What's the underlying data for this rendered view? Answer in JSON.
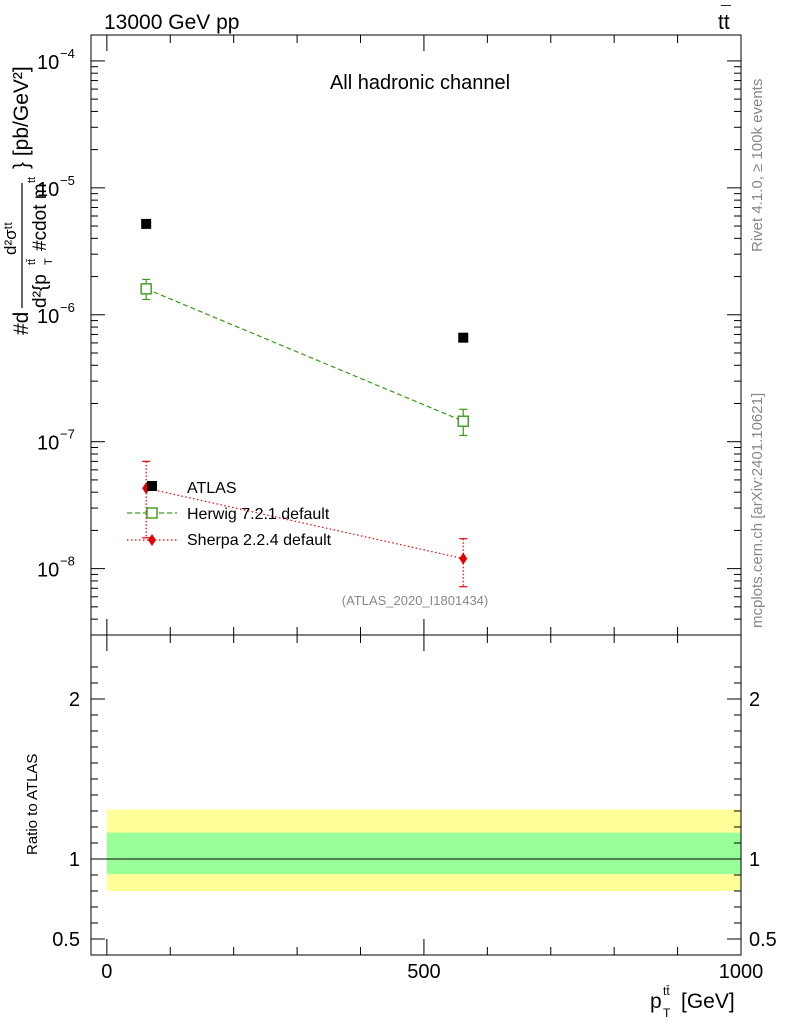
{
  "header": {
    "left": "13000 GeV pp",
    "right_main": "tt",
    "right_bar": "¯"
  },
  "side_labels": {
    "rivet": "Rivet 4.1.0, ≥ 100k events",
    "mcplots": "mcplots.cern.ch [arXiv:2401.10621]"
  },
  "chart_data": [
    {
      "type": "scatter",
      "title": "All hadronic channel",
      "watermark": "(ATLAS_2020_I1801434)",
      "xlabel": "p_T^{tt̄} [GeV]",
      "xlabel_parts": {
        "p": "p",
        "sub": "T",
        "sup": "tt̄",
        "unit": "[GeV]"
      },
      "ylabel_parts": {
        "prefix": "#d",
        "frac_num": "d²σᵗᵗ",
        "frac_den": "d²{p",
        "den_sup": "tt̄",
        "den_sub": "T",
        "den_tail": "#cdot m",
        "den_tail_sup": "tt",
        "suffix": "} [pb/GeV²]"
      },
      "xlim": [
        -25,
        1000
      ],
      "ylim": [
        3e-09,
        0.00016
      ],
      "yscale": "log",
      "y_ticks": [
        {
          "value": 1e-08,
          "base": "10",
          "exp": "−8"
        },
        {
          "value": 1e-07,
          "base": "10",
          "exp": "−7"
        },
        {
          "value": 1e-06,
          "base": "10",
          "exp": "−6"
        },
        {
          "value": 1e-05,
          "base": "10",
          "exp": "−5"
        },
        {
          "value": 0.0001,
          "base": "10",
          "exp": "−4"
        }
      ],
      "legend_position": "center-left",
      "series": [
        {
          "name": "ATLAS",
          "color": "#000000",
          "marker": "square-filled",
          "points": [
            {
              "x": 62,
              "y": 5.2e-06
            },
            {
              "x": 562,
              "y": 6.6e-07
            }
          ]
        },
        {
          "name": "Herwig 7.2.1 default",
          "color": "#3a9a1a",
          "marker": "square-open",
          "line": "dashed",
          "points": [
            {
              "x": 62,
              "y": 1.6e-06,
              "ylo": 1.32e-06,
              "yhi": 1.9e-06
            },
            {
              "x": 562,
              "y": 1.45e-07,
              "ylo": 1.12e-07,
              "yhi": 1.8e-07
            }
          ]
        },
        {
          "name": "Sherpa 2.2.4 default",
          "color": "#e60000",
          "marker": "diamond-filled",
          "line": "dotted",
          "points": [
            {
              "x": 62,
              "y": 4.3e-08,
              "ylo": 1.75e-08,
              "yhi": 7e-08
            },
            {
              "x": 562,
              "y": 1.2e-08,
              "ylo": 7.2e-09,
              "yhi": 1.72e-08
            }
          ]
        }
      ]
    },
    {
      "type": "band",
      "ylabel": "Ratio to ATLAS",
      "xlim": [
        -25,
        1000
      ],
      "ylim": [
        0.4,
        2.4
      ],
      "x_ticks": [
        {
          "value": 0,
          "label": "0"
        },
        {
          "value": 500,
          "label": "500"
        },
        {
          "value": 1000,
          "label": "1000"
        }
      ],
      "y_ticks": [
        {
          "value": 0.5,
          "label": "0.5"
        },
        {
          "value": 1,
          "label": "1"
        },
        {
          "value": 2,
          "label": "2"
        }
      ],
      "reference_line": 1,
      "bands": [
        {
          "name": "total",
          "color": "#ffff99",
          "x0": 0,
          "x1": 1000,
          "lo": 0.8,
          "hi": 1.31
        },
        {
          "name": "stat",
          "color": "#99ff99",
          "x0": 0,
          "x1": 1000,
          "lo": 0.906,
          "hi": 1.165
        }
      ]
    }
  ]
}
